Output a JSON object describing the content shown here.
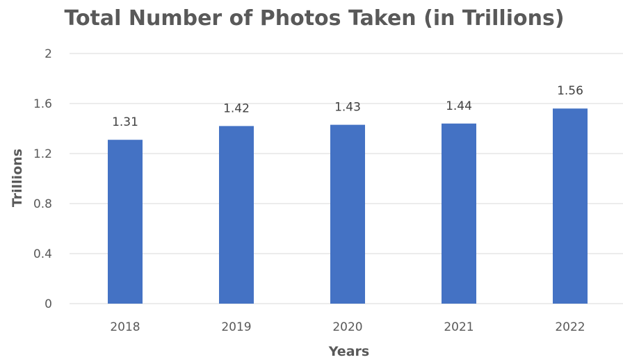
{
  "chart_data": {
    "type": "bar",
    "title": "Total Number of Photos Taken (in Trillions)",
    "xlabel": "Years",
    "ylabel": "Trillions",
    "categories": [
      "2018",
      "2019",
      "2020",
      "2021",
      "2022"
    ],
    "values": [
      1.31,
      1.42,
      1.43,
      1.44,
      1.56
    ],
    "data_labels": [
      "1.31",
      "1.42",
      "1.43",
      "1.44",
      "1.56"
    ],
    "ylim": [
      0,
      2
    ],
    "yticks": [
      0,
      0.4,
      0.8,
      1.2,
      1.6,
      2
    ],
    "ytick_labels": [
      "0",
      "0.4",
      "0.8",
      "1.2",
      "1.6",
      "2"
    ],
    "grid": true,
    "legend": "none",
    "bar_color": "#4472c4",
    "gridline_color": "#d9d9d9",
    "text_color": "#595959"
  }
}
